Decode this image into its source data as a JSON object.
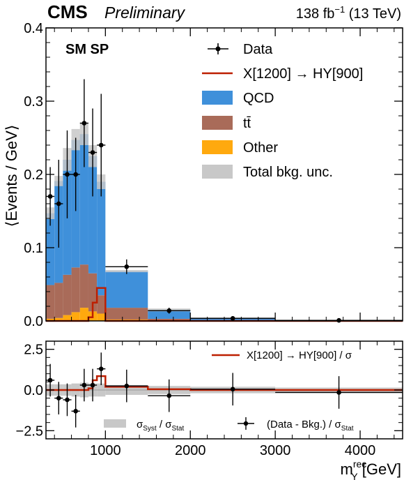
{
  "header": {
    "experiment": "CMS",
    "status": "Preliminary",
    "lumi_value": "138 fb",
    "lumi_exp": "−1",
    "energy": " (13 TeV)"
  },
  "category_label": "SM SP",
  "legend": {
    "data": "Data",
    "signal": "X[1200] → HY[900]",
    "qcd": "QCD",
    "ttbar": "tt̄",
    "other": "Other",
    "unc": "Total bkg. unc."
  },
  "ratio_legend": {
    "signal": "X[1200] → HY[900] / σ",
    "syst_main": "σ",
    "syst_sub1": "Syst",
    "syst_mid": " / σ",
    "syst_sub2": "Stat",
    "data_main": "(Data - Bkg.) / σ",
    "data_sub": "Stat"
  },
  "colors": {
    "qcd": "#3f90da",
    "ttbar": "#a96b59",
    "other": "#ffa90e",
    "unc": "#c8c8c8",
    "signal": "#bd1f01",
    "data": "#000000"
  },
  "chart_data": [
    {
      "type": "bar",
      "subtype": "stacked-histogram",
      "ylabel": "⟨Events / GeV⟩",
      "xlim": [
        300,
        4500
      ],
      "ylim": [
        0,
        0.4
      ],
      "yticks": [
        0.0,
        0.1,
        0.2,
        0.3,
        0.4
      ],
      "ytick_labels": [
        "0.0",
        "0.1",
        "0.2",
        "0.3",
        "0.4"
      ],
      "bin_edges": [
        300,
        400,
        500,
        600,
        700,
        800,
        900,
        1000,
        1500,
        2000,
        3000,
        4500
      ],
      "series": [
        {
          "name": "Other",
          "values": [
            0.003,
            0.004,
            0.008,
            0.012,
            0.018,
            0.013,
            0.01,
            0.002,
            0.0004,
            0.0001,
            3e-05
          ]
        },
        {
          "name": "tt̄",
          "values": [
            0.046,
            0.048,
            0.055,
            0.061,
            0.059,
            0.052,
            0.025,
            0.016,
            0.0025,
            0.0006,
            0.0001
          ]
        },
        {
          "name": "QCD",
          "values": [
            0.098,
            0.139,
            0.157,
            0.174,
            0.178,
            0.16,
            0.155,
            0.05,
            0.0125,
            0.0033,
            0.0009
          ]
        }
      ],
      "total_unc": {
        "lo": [
          0.139,
          0.184,
          0.205,
          0.233,
          0.24,
          0.21,
          0.18,
          0.0665,
          0.013,
          0.003,
          0.0008
        ],
        "hi": [
          0.155,
          0.198,
          0.236,
          0.262,
          0.27,
          0.24,
          0.2,
          0.0695,
          0.017,
          0.005,
          0.0012
        ]
      },
      "signal": {
        "name": "X[1200] → HY[900]",
        "bin_edges": [
          300,
          800,
          850,
          900,
          1000,
          4500
        ],
        "values": [
          0.0,
          0.005,
          0.025,
          0.045,
          0.0
        ]
      },
      "data": {
        "name": "Data",
        "x": [
          350,
          450,
          550,
          650,
          750,
          850,
          950,
          1250,
          1750,
          2500,
          3750
        ],
        "xerr": [
          50,
          50,
          50,
          50,
          50,
          50,
          50,
          250,
          250,
          500,
          750
        ],
        "y": [
          0.17,
          0.16,
          0.2,
          0.2,
          0.27,
          0.23,
          0.24,
          0.074,
          0.014,
          0.0035,
          0.0008
        ],
        "yerr": [
          0.04,
          0.06,
          0.06,
          0.05,
          0.06,
          0.06,
          0.07,
          0.01,
          0.004,
          0.001,
          0.0003
        ]
      }
    },
    {
      "type": "bar",
      "subtype": "pull-ratio",
      "xlabel_main": "m",
      "xlabel_sup": "rec",
      "xlabel_sub": "Y",
      "xlabel_unit": " [GeV]",
      "xlim": [
        300,
        4500
      ],
      "ylim": [
        -3.0,
        3.0
      ],
      "xticks": [
        1000,
        2000,
        3000,
        4000
      ],
      "xtick_labels": [
        "1000",
        "2000",
        "3000",
        "4000"
      ],
      "yticks": [
        -2.5,
        0.0,
        2.5
      ],
      "ytick_labels": [
        "−2.5",
        "0.0",
        "2.5"
      ],
      "bin_edges": [
        300,
        400,
        500,
        600,
        700,
        800,
        900,
        1000,
        1500,
        2000,
        3000,
        4500
      ],
      "syst_band": [
        0.35,
        0.35,
        0.35,
        0.4,
        0.45,
        0.4,
        0.4,
        0.3,
        0.25,
        0.2,
        0.15
      ],
      "signal": {
        "bin_edges": [
          300,
          800,
          850,
          900,
          1000,
          1500,
          2000,
          3000,
          4500
        ],
        "values": [
          0.0,
          0.1,
          0.6,
          0.85,
          0.2,
          0.05,
          0.0,
          0.0
        ]
      },
      "data": {
        "x": [
          350,
          450,
          550,
          650,
          750,
          850,
          950,
          1250,
          1750,
          2500,
          3750
        ],
        "xerr": [
          50,
          50,
          50,
          50,
          50,
          50,
          50,
          250,
          250,
          500,
          750
        ],
        "y": [
          0.6,
          -0.5,
          -0.6,
          -1.3,
          0.3,
          0.3,
          1.3,
          0.25,
          -0.35,
          0.05,
          -0.15
        ],
        "yerr": [
          1.0,
          1.0,
          1.0,
          1.0,
          1.0,
          1.0,
          1.0,
          1.0,
          1.0,
          1.0,
          1.0
        ]
      }
    }
  ]
}
